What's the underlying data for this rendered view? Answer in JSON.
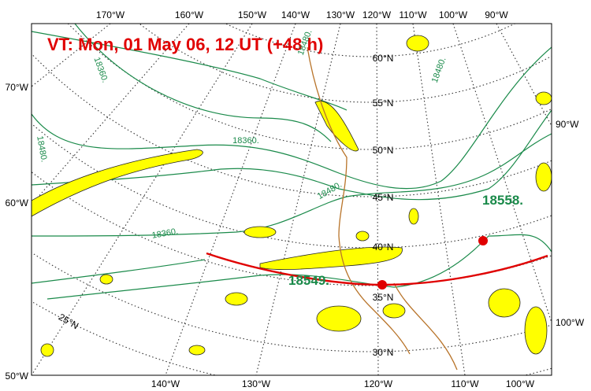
{
  "title": "VT:  Mon, 01 May 06, 12 UT (+48 h)",
  "top_labels": [
    "170°W",
    "160°W",
    "150°W",
    "140°W",
    "130°W",
    "120°W",
    "110°W",
    "100°W",
    "90°W"
  ],
  "left_labels": [
    "70°W",
    "60°W",
    "50°W"
  ],
  "right_labels": [
    "90°W",
    "100°W"
  ],
  "bottom_labels": [
    "140°W",
    "130°W",
    "120°W",
    "110°W",
    "100°W"
  ],
  "lat_labels": [
    "60°N",
    "55°N",
    "50°N",
    "45°N",
    "40°N",
    "35°N",
    "30°N",
    "25°N"
  ],
  "contour_labels": [
    "18360.",
    "18480.",
    "18360.",
    "18480.",
    "18480.",
    "18360.",
    "18480."
  ],
  "highlight_labels": [
    "18549.",
    "18558."
  ]
}
